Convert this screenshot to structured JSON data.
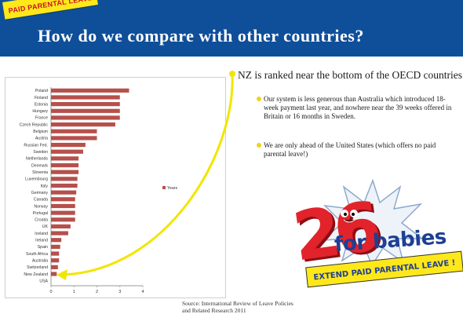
{
  "header": {
    "tag": "PAID PARENTAL LEAVE",
    "title": "How do we compare with other countries?"
  },
  "text": {
    "headline": "NZ is ranked near the bottom of the OECD countries.",
    "bullets": [
      "Our system is less generous than Australia which introduced 18-week payment last year, and nowhere near the 39 weeks offered in Britain or 16 months in Sweden.",
      "We are only ahead of the United States (which offers no paid parental leave!)"
    ],
    "source": "Source: International Review of Leave Policies and Related Research 2011"
  },
  "badge": {
    "number": "26",
    "tagline": "for babies",
    "banner": "EXTEND PAID PARENTAL LEAVE !"
  },
  "colors": {
    "header_bg": "#0f4f9a",
    "tag_bg": "#ffe81a",
    "tag_text": "#c8102e",
    "bar": "#b5504b",
    "curve": "#f2e500",
    "badge_red": "#e2232b",
    "badge_blue": "#1d3f95"
  },
  "chart_data": {
    "type": "bar",
    "orientation": "horizontal",
    "categories": [
      "Poland",
      "Finland",
      "Estonia",
      "Hungary",
      "France",
      "Czech Republic",
      "Belgium",
      "Austria",
      "Russian Fed.",
      "Sweden",
      "Netherlands",
      "Denmark",
      "Slovenia",
      "Luxembourg",
      "Italy",
      "Germany",
      "Canada",
      "Norway",
      "Portugal",
      "Croatia",
      "UK",
      "Iceland",
      "Ireland",
      "Spain",
      "South Africa",
      "Australia",
      "Switzerland",
      "New Zealand",
      "USA"
    ],
    "series": [
      {
        "name": "Years",
        "values": [
          3.4,
          3.0,
          3.0,
          3.0,
          3.0,
          2.8,
          2.0,
          2.0,
          1.5,
          1.4,
          1.2,
          1.2,
          1.2,
          1.15,
          1.15,
          1.1,
          1.05,
          1.05,
          1.05,
          1.05,
          0.85,
          0.75,
          0.45,
          0.4,
          0.35,
          0.35,
          0.3,
          0.25,
          0.0
        ]
      }
    ],
    "xlim": [
      0,
      4
    ],
    "xticks": [
      "0",
      "1",
      "2",
      "3",
      "4"
    ],
    "legend": "right",
    "grid": false
  }
}
